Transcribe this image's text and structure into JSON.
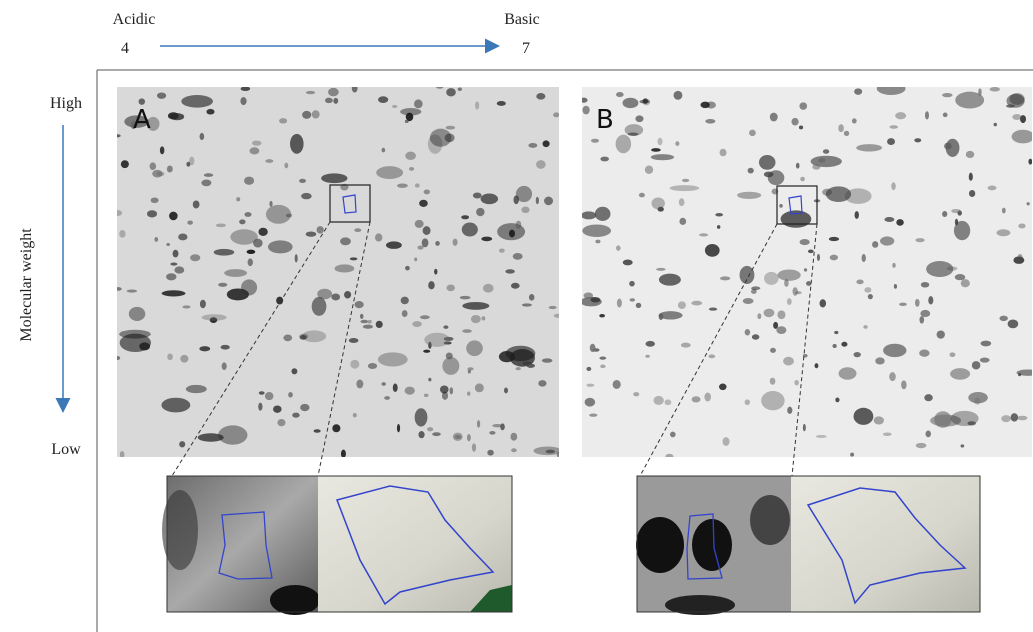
{
  "header": {
    "acidic": "Acidic",
    "acidic_ph": "4",
    "basic": "Basic",
    "basic_ph": "7"
  },
  "side": {
    "high": "High",
    "axis": "Molecular weight",
    "low": "Low"
  },
  "panels": [
    {
      "label": "A"
    },
    {
      "label": "B"
    }
  ]
}
